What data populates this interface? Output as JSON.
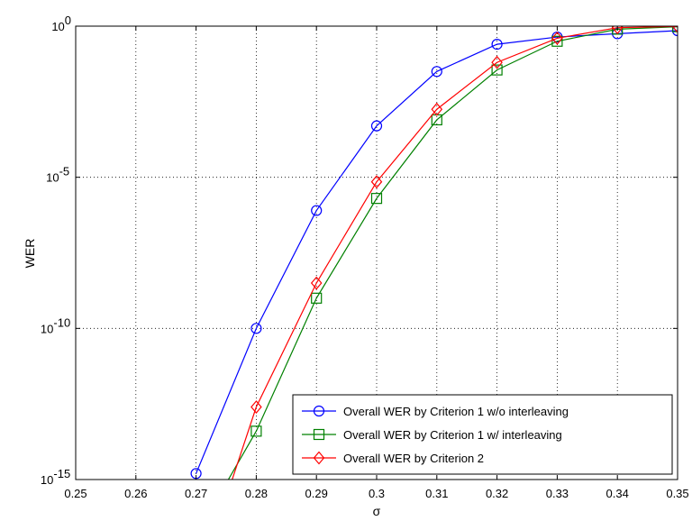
{
  "chart_data": {
    "type": "line",
    "title": "",
    "xlabel": "σ",
    "ylabel": "WER",
    "xlim": [
      0.25,
      0.35
    ],
    "ylim_exponent": [
      -15,
      0
    ],
    "yscale": "log",
    "grid": true,
    "legend_position": "bottom-right",
    "x_ticks": [
      "0.25",
      "0.26",
      "0.27",
      "0.28",
      "0.29",
      "0.3",
      "0.31",
      "0.32",
      "0.33",
      "0.34",
      "0.35"
    ],
    "y_ticks": [
      {
        "base": "10",
        "exp": "0",
        "value": 0
      },
      {
        "base": "10",
        "exp": "-5",
        "value": -5
      },
      {
        "base": "10",
        "exp": "-10",
        "value": -10
      },
      {
        "base": "10",
        "exp": "-15",
        "value": -15
      }
    ],
    "series": [
      {
        "name": "Overall WER by Criterion 1 w/o interleaving",
        "color": "#0000ff",
        "marker": "circle",
        "x": [
          0.27,
          0.28,
          0.29,
          0.3,
          0.31,
          0.32,
          0.33,
          0.34,
          0.35
        ],
        "log10_y": [
          -14.8,
          -10.0,
          -6.1,
          -3.3,
          -1.5,
          -0.6,
          -0.36,
          -0.25,
          -0.15
        ]
      },
      {
        "name": "Overall WER by Criterion 1 w/ interleaving",
        "color": "#008000",
        "marker": "square",
        "x": [
          0.28,
          0.29,
          0.3,
          0.31,
          0.32,
          0.33,
          0.34,
          0.35
        ],
        "log10_y": [
          -13.4,
          -9.0,
          -5.7,
          -3.1,
          -1.45,
          -0.5,
          -0.1,
          -0.02
        ],
        "lead_in": {
          "x": 0.2745,
          "log10_y": -15.3
        }
      },
      {
        "name": "Overall WER by Criterion 2",
        "color": "#ff0000",
        "marker": "diamond",
        "x": [
          0.28,
          0.29,
          0.3,
          0.31,
          0.32,
          0.33,
          0.34,
          0.35
        ],
        "log10_y": [
          -12.6,
          -8.5,
          -5.15,
          -2.75,
          -1.2,
          -0.4,
          -0.05,
          -0.01
        ],
        "lead_in": {
          "x": 0.2755,
          "log10_y": -15.3
        }
      }
    ]
  }
}
